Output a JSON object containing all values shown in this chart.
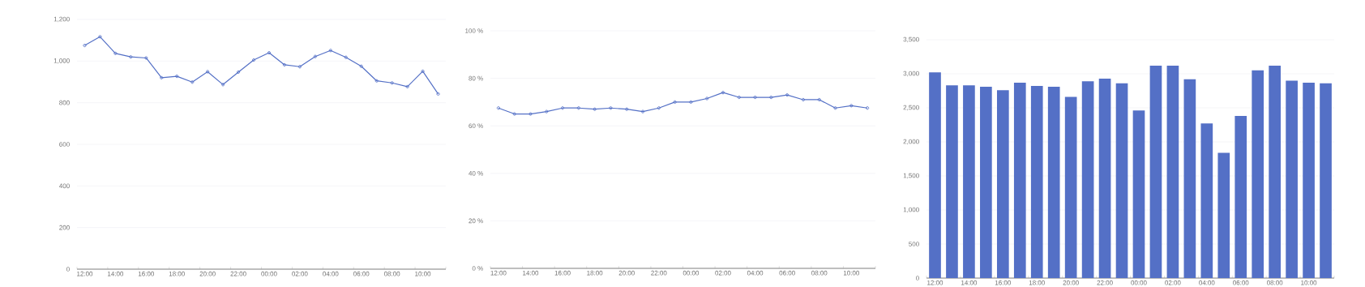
{
  "chart_data": [
    {
      "type": "line",
      "categories": [
        "12:00",
        null,
        "14:00",
        null,
        "16:00",
        null,
        "18:00",
        null,
        "20:00",
        null,
        "22:00",
        null,
        "00:00",
        null,
        "02:00",
        null,
        "04:00",
        null,
        "06:00",
        null,
        "08:00",
        null,
        "10:00",
        null
      ],
      "values": [
        1075,
        1117,
        1037,
        1020,
        1015,
        920,
        927,
        899,
        949,
        887,
        947,
        1005,
        1040,
        982,
        973,
        1022,
        1051,
        1018,
        975,
        905,
        895,
        877,
        951,
        842
      ],
      "color": "#5470c6",
      "marker": "circle",
      "grid": "y",
      "ylim": [
        0,
        1200
      ],
      "yticks": [
        0,
        200,
        400,
        600,
        800,
        {
          "value": 1000,
          "label": "1,000"
        },
        {
          "value": 1200,
          "label": "1,200"
        }
      ]
    },
    {
      "type": "line",
      "categories": [
        "12:00",
        null,
        "14:00",
        null,
        "16:00",
        null,
        "18:00",
        null,
        "20:00",
        null,
        "22:00",
        null,
        "00:00",
        null,
        "02:00",
        null,
        "04:00",
        null,
        "06:00",
        null,
        "08:00",
        null,
        "10:00",
        null
      ],
      "values": [
        67.5,
        65,
        65,
        66,
        67.5,
        67.5,
        67,
        67.5,
        67,
        66,
        67.5,
        70,
        70,
        71.5,
        74,
        72,
        72,
        72,
        73,
        71,
        71,
        67.5,
        68.5,
        67.5
      ],
      "color": "#5470c6",
      "marker": "circle",
      "grid": "y",
      "ylim": [
        0,
        100
      ],
      "yticks": [
        {
          "value": 0,
          "label": "0 %"
        },
        {
          "value": 20,
          "label": "20 %"
        },
        {
          "value": 40,
          "label": "40 %"
        },
        {
          "value": 60,
          "label": "60 %"
        },
        {
          "value": 80,
          "label": "80 %"
        },
        {
          "value": 100,
          "label": "100 %"
        }
      ]
    },
    {
      "type": "bar",
      "categories": [
        "12:00",
        null,
        "14:00",
        null,
        "16:00",
        null,
        "18:00",
        null,
        "20:00",
        null,
        "22:00",
        null,
        "00:00",
        null,
        "02:00",
        null,
        "04:00",
        null,
        "06:00",
        null,
        "08:00",
        null,
        "10:00",
        null
      ],
      "values": [
        3020,
        2830,
        2830,
        2810,
        2760,
        2870,
        2820,
        2810,
        2660,
        2890,
        2930,
        2860,
        2460,
        3120,
        3120,
        2920,
        2270,
        1840,
        2380,
        3050,
        3120,
        2900,
        2870,
        2860
      ],
      "color": "#5470c6",
      "grid": "y",
      "ylim": [
        0,
        3500
      ],
      "yticks": [
        0,
        500,
        {
          "value": 1000,
          "label": "1,000"
        },
        {
          "value": 1500,
          "label": "1,500"
        },
        {
          "value": 2000,
          "label": "2,000"
        },
        {
          "value": 2500,
          "label": "2,500"
        },
        {
          "value": 3000,
          "label": "3,000"
        },
        {
          "value": 3500,
          "label": "3,500"
        }
      ]
    }
  ]
}
